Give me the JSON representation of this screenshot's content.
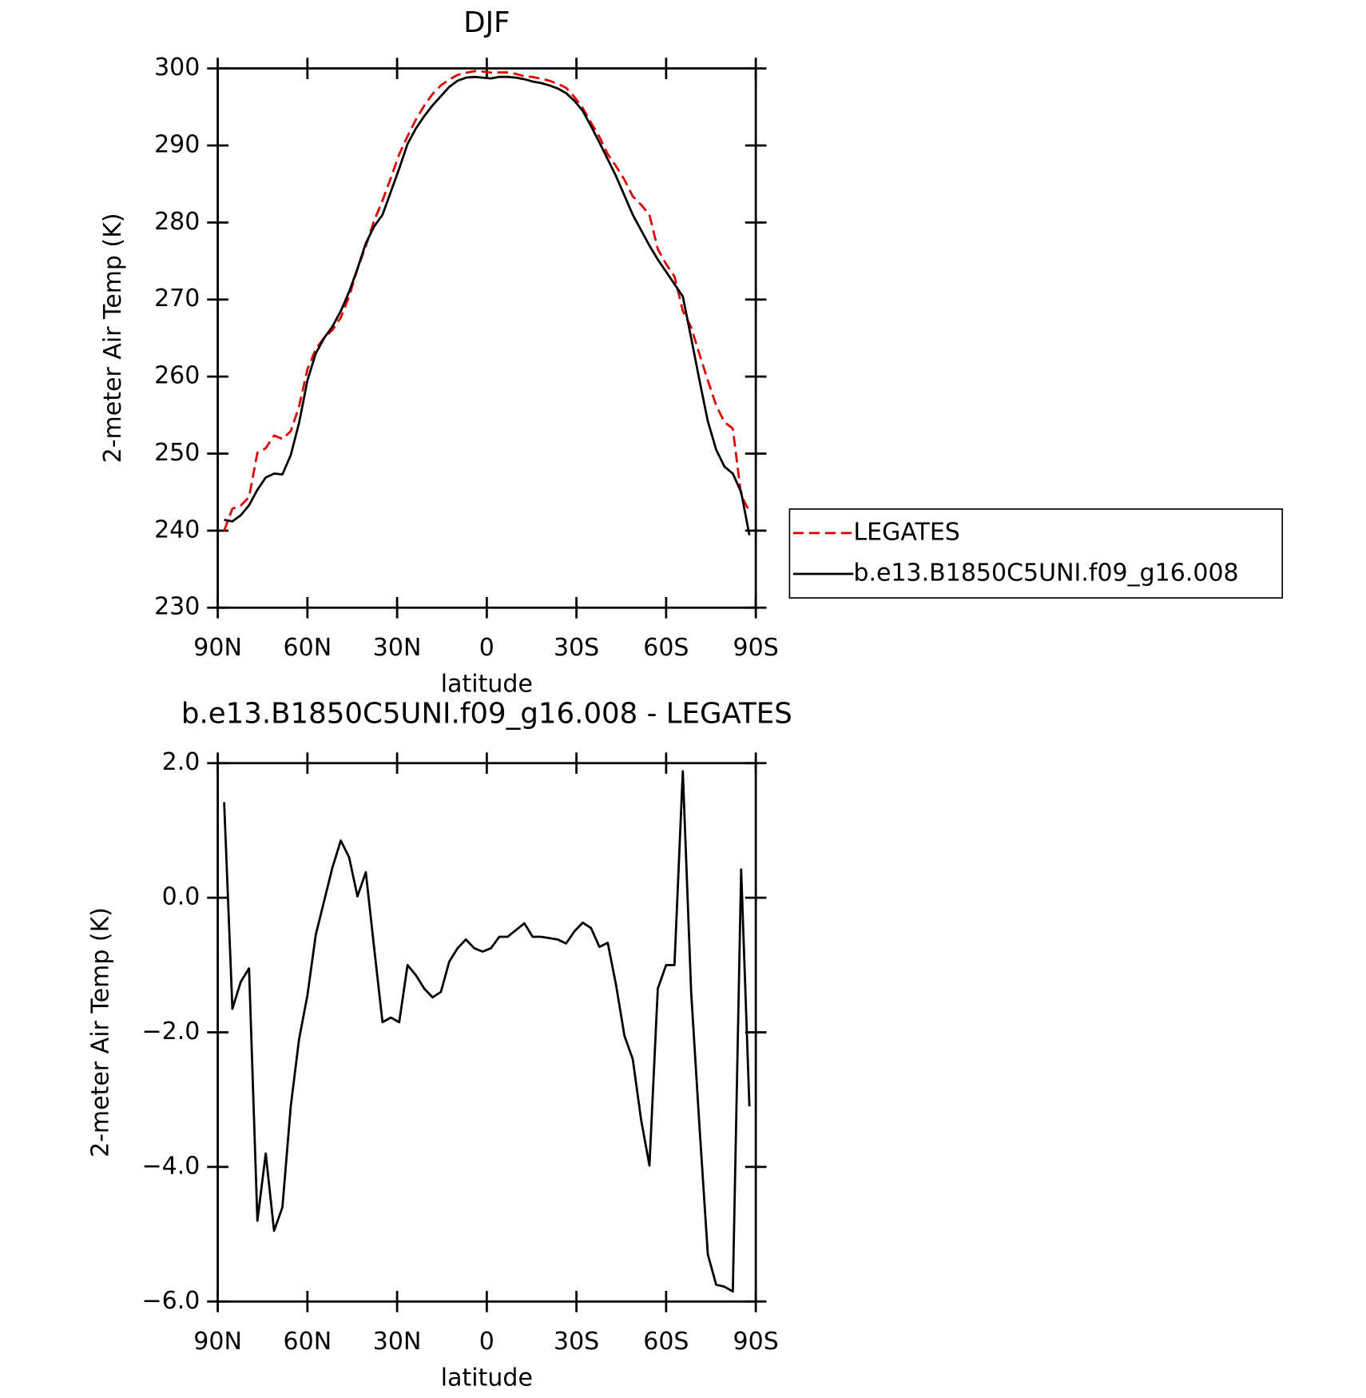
{
  "chart_data": [
    {
      "type": "line",
      "title": "DJF",
      "x_label": "latitude",
      "y_label": "2-meter Air Temp (K)",
      "x": [
        87.86,
        85.1,
        82.31,
        79.53,
        76.74,
        73.95,
        71.16,
        68.37,
        65.58,
        62.79,
        60.0,
        57.21,
        54.42,
        51.63,
        48.84,
        46.05,
        43.26,
        40.47,
        37.67,
        34.88,
        32.09,
        29.3,
        26.51,
        23.72,
        20.93,
        18.14,
        15.35,
        12.56,
        9.77,
        6.98,
        4.19,
        1.4,
        -1.4,
        -4.19,
        -6.98,
        -9.77,
        -12.56,
        -15.35,
        -18.14,
        -20.93,
        -23.72,
        -26.51,
        -29.3,
        -32.09,
        -34.88,
        -37.67,
        -40.47,
        -43.26,
        -46.05,
        -48.84,
        -51.63,
        -54.42,
        -57.21,
        -60.0,
        -62.79,
        -65.58,
        -68.37,
        -71.16,
        -73.95,
        -76.74,
        -79.53,
        -82.31,
        -85.1,
        -87.86
      ],
      "series": [
        {
          "name": "LEGATES",
          "color": "#e00000",
          "line_style": "dashed",
          "values": [
            240.0,
            242.85,
            243.25,
            244.35,
            250.1,
            250.7,
            252.35,
            251.9,
            252.9,
            256.1,
            260.95,
            263.55,
            265.05,
            266.05,
            267.65,
            270.4,
            273.98,
            276.92,
            280.25,
            282.85,
            285.78,
            288.85,
            291.2,
            293.35,
            295.15,
            296.68,
            297.8,
            298.55,
            299.15,
            299.42,
            299.65,
            299.6,
            299.45,
            299.48,
            299.48,
            299.28,
            298.98,
            298.88,
            298.68,
            298.4,
            298.02,
            297.48,
            296.3,
            294.87,
            292.95,
            291.13,
            288.87,
            287.3,
            285.55,
            283.4,
            282.3,
            280.98,
            276.55,
            274.6,
            273.0,
            268.52,
            266.4,
            262.9,
            259.5,
            256.25,
            254.08,
            253.25,
            244.58,
            242.5
          ]
        },
        {
          "name": "b.e13.B1850C5UNI.f09_g16.008",
          "color": "#000000",
          "line_style": "solid",
          "values": [
            241.4,
            241.2,
            242.0,
            243.3,
            245.3,
            246.9,
            247.4,
            247.3,
            249.8,
            254.0,
            259.5,
            263.0,
            265.0,
            266.5,
            268.5,
            271.0,
            274.0,
            277.3,
            279.5,
            281.0,
            284.0,
            287.0,
            290.2,
            292.2,
            293.8,
            295.2,
            296.4,
            297.6,
            298.4,
            298.8,
            298.9,
            298.8,
            298.7,
            298.9,
            298.9,
            298.8,
            298.6,
            298.3,
            298.1,
            297.8,
            297.4,
            296.8,
            295.8,
            294.5,
            292.5,
            290.4,
            288.2,
            286.0,
            283.5,
            281.0,
            279.0,
            277.0,
            275.2,
            273.6,
            272.0,
            270.4,
            265.0,
            259.5,
            254.2,
            250.5,
            248.3,
            247.4,
            245.0,
            239.4
          ]
        }
      ],
      "xlim": [
        90,
        -90
      ],
      "xticks": [
        {
          "value": 90,
          "label": "90N"
        },
        {
          "value": 60,
          "label": "60N"
        },
        {
          "value": 30,
          "label": "30N"
        },
        0,
        {
          "value": -30,
          "label": "30S"
        },
        {
          "value": -60,
          "label": "60S"
        },
        {
          "value": -90,
          "label": "90S"
        }
      ],
      "ylim": [
        230,
        300
      ],
      "yticks": [
        230,
        240,
        250,
        260,
        270,
        280,
        290,
        300
      ],
      "grid": false,
      "legend": "right"
    },
    {
      "type": "line",
      "title": "b.e13.B1850C5UNI.f09_g16.008 - LEGATES",
      "x_label": "latitude",
      "y_label": "2-meter Air Temp (K)",
      "x": [
        87.86,
        85.1,
        82.31,
        79.53,
        76.74,
        73.95,
        71.16,
        68.37,
        65.58,
        62.79,
        60.0,
        57.21,
        54.42,
        51.63,
        48.84,
        46.05,
        43.26,
        40.47,
        37.67,
        34.88,
        32.09,
        29.3,
        26.51,
        23.72,
        20.93,
        18.14,
        15.35,
        12.56,
        9.77,
        6.98,
        4.19,
        1.4,
        -1.4,
        -4.19,
        -6.98,
        -9.77,
        -12.56,
        -15.35,
        -18.14,
        -20.93,
        -23.72,
        -26.51,
        -29.3,
        -32.09,
        -34.88,
        -37.67,
        -40.47,
        -43.26,
        -46.05,
        -48.84,
        -51.63,
        -54.42,
        -57.21,
        -60.0,
        -62.79,
        -65.58,
        -68.37,
        -71.16,
        -73.95,
        -76.74,
        -79.53,
        -82.31,
        -85.1,
        -87.86
      ],
      "series": [
        {
          "color": "#000000",
          "line_style": "solid",
          "values": [
            1.42,
            -1.65,
            -1.25,
            -1.05,
            -4.8,
            -3.8,
            -4.95,
            -4.6,
            -3.1,
            -2.1,
            -1.45,
            -0.55,
            -0.05,
            0.45,
            0.85,
            0.6,
            0.02,
            0.38,
            -0.75,
            -1.85,
            -1.78,
            -1.85,
            -1.0,
            -1.15,
            -1.35,
            -1.48,
            -1.4,
            -0.95,
            -0.75,
            -0.62,
            -0.75,
            -0.8,
            -0.75,
            -0.58,
            -0.58,
            -0.48,
            -0.38,
            -0.58,
            -0.58,
            -0.6,
            -0.62,
            -0.68,
            -0.5,
            -0.37,
            -0.45,
            -0.73,
            -0.67,
            -1.3,
            -2.05,
            -2.4,
            -3.3,
            -3.98,
            -1.35,
            -1.0,
            -1.0,
            1.88,
            -1.4,
            -3.4,
            -5.3,
            -5.75,
            -5.78,
            -5.85,
            0.42,
            -3.1
          ]
        }
      ],
      "xlim": [
        90,
        -90
      ],
      "xticks": [
        {
          "value": 90,
          "label": "90N"
        },
        {
          "value": 60,
          "label": "60N"
        },
        {
          "value": 30,
          "label": "30N"
        },
        0,
        {
          "value": -30,
          "label": "30S"
        },
        {
          "value": -60,
          "label": "60S"
        },
        {
          "value": -90,
          "label": "90S"
        }
      ],
      "ylim": [
        -6,
        2
      ],
      "yticks": [
        {
          "value": -6,
          "label": "−6.0"
        },
        {
          "value": -4,
          "label": "−4.0"
        },
        {
          "value": -2,
          "label": "−2.0"
        },
        {
          "value": 0,
          "label": "0.0"
        },
        {
          "value": 2,
          "label": "2.0"
        }
      ],
      "grid": false
    }
  ]
}
